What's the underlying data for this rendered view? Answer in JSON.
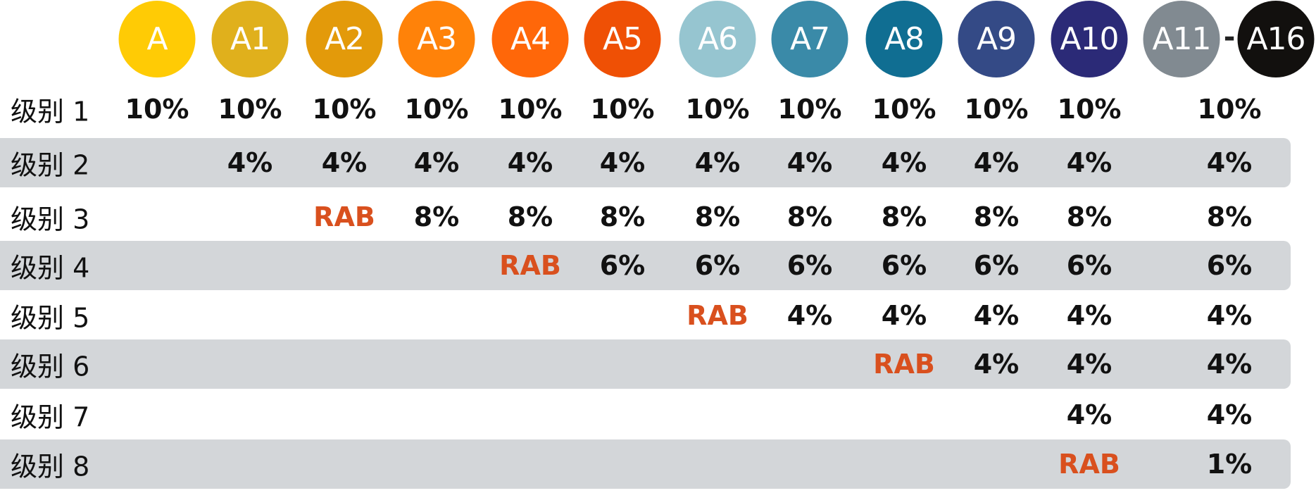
{
  "columns": [
    {
      "label": "A",
      "color": "#ffcb05"
    },
    {
      "label": "A1",
      "color": "#e0b01c"
    },
    {
      "label": "A2",
      "color": "#e39a0a"
    },
    {
      "label": "A3",
      "color": "#ff8209"
    },
    {
      "label": "A4",
      "color": "#ff6709"
    },
    {
      "label": "A5",
      "color": "#ef5005"
    },
    {
      "label": "A6",
      "color": "#96c5d0"
    },
    {
      "label": "A7",
      "color": "#3a8aa8"
    },
    {
      "label": "A8",
      "color": "#106e92"
    },
    {
      "label": "A9",
      "color": "#344a86"
    },
    {
      "label": "A10",
      "color": "#2b2a77"
    }
  ],
  "range_column": {
    "from": {
      "label": "A11",
      "color": "#818a91"
    },
    "separator": "-",
    "to": {
      "label": "A16",
      "color": "#12100e"
    }
  },
  "rab_color": "#d9501e",
  "band_color": "#d3d6d9",
  "rows": [
    {
      "label": "级别 1",
      "cells": [
        "10%",
        "10%",
        "10%",
        "10%",
        "10%",
        "10%",
        "10%",
        "10%",
        "10%",
        "10%",
        "10%",
        "10%"
      ]
    },
    {
      "label": "级别 2",
      "cells": [
        null,
        "4%",
        "4%",
        "4%",
        "4%",
        "4%",
        "4%",
        "4%",
        "4%",
        "4%",
        "4%",
        "4%"
      ]
    },
    {
      "label": "级别 3",
      "cells": [
        null,
        null,
        "RAB",
        "8%",
        "8%",
        "8%",
        "8%",
        "8%",
        "8%",
        "8%",
        "8%",
        "8%"
      ]
    },
    {
      "label": "级别 4",
      "cells": [
        null,
        null,
        null,
        null,
        "RAB",
        "6%",
        "6%",
        "6%",
        "6%",
        "6%",
        "6%",
        "6%"
      ]
    },
    {
      "label": "级别 5",
      "cells": [
        null,
        null,
        null,
        null,
        null,
        null,
        "RAB",
        "4%",
        "4%",
        "4%",
        "4%",
        "4%"
      ]
    },
    {
      "label": "级别 6",
      "cells": [
        null,
        null,
        null,
        null,
        null,
        null,
        null,
        null,
        "RAB",
        "4%",
        "4%",
        "4%"
      ]
    },
    {
      "label": "级别 7",
      "cells": [
        null,
        null,
        null,
        null,
        null,
        null,
        null,
        null,
        null,
        null,
        "4%",
        "4%"
      ]
    },
    {
      "label": "级别 8",
      "cells": [
        null,
        null,
        null,
        null,
        null,
        null,
        null,
        null,
        null,
        null,
        "RAB",
        "1%"
      ]
    }
  ]
}
